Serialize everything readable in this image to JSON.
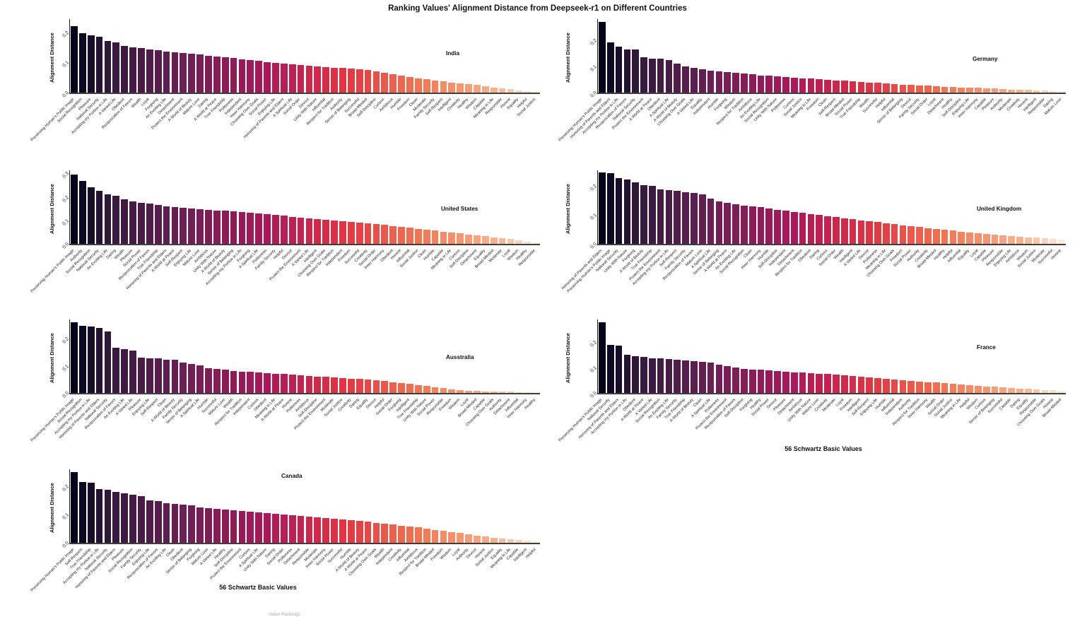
{
  "title": "Ranking Values' Alignment Distance from Deepseek-r1 on Different Countries",
  "ylabel": "Alignment Distance",
  "xlabel": "56 Schwartz Basic Values",
  "bottom_partial_caption": "Value Rankings",
  "colormap": {
    "name": "rocket",
    "stops": [
      [
        0,
        "#03051A"
      ],
      [
        0.083,
        "#35193E"
      ],
      [
        0.25,
        "#701F57"
      ],
      [
        0.417,
        "#AD1759"
      ],
      [
        0.583,
        "#E13342"
      ],
      [
        0.75,
        "#F37651"
      ],
      [
        0.917,
        "#F6B48F"
      ],
      [
        1,
        "#FAEBDD"
      ]
    ]
  },
  "chart_data": [
    {
      "type": "bar",
      "country": "India",
      "ylim": [
        0,
        0.244
      ],
      "yticks": [
        "0.0",
        "0.1",
        "0.2"
      ],
      "label_pos": {
        "x_pct": 0.8,
        "y_pct": 0.42
      },
      "show_xlabel": false,
      "categories": [
        "Preserving Human's Public Image",
        "Social Recognition",
        "Pleasure",
        "National Security",
        "Accepting my Portion in Life",
        "A Varied Life",
        "Obedient",
        "Reciprocation of Favors",
        "Wealth",
        "Loyal",
        "Forgiving",
        "An Exciting Life",
        "Detachment",
        "Protect the Environment",
        "A World of Beauty",
        "Mature Love",
        "Daring",
        "A World at Peace",
        "True Friendship",
        "Politeness",
        "Independent",
        "Inner Harmony",
        "Choosing Own Goals",
        "Social Power",
        "Enjoying Life",
        "Honoring of Parents and Elders",
        "A Spiritual Life",
        "Social Order",
        "Devout",
        "Unity With Nature",
        "Influential",
        "Respect for Tradition",
        "Authority",
        "Sense of Belonging",
        "Successful",
        "Broad-Minded",
        "Self-Discipline",
        "Curious",
        "Ambitious",
        "Humble",
        "Freedom",
        "Clean",
        "Moderate",
        "Family Security",
        "Self-Respect",
        "Intelligent",
        "Creativity",
        "Healthy",
        "Wisdom",
        "Capable",
        "Meaning in Life",
        "Responsible",
        "Honest",
        "Equality",
        "Helpful",
        "Social Justice"
      ],
      "values": [
        0.22,
        0.196,
        0.191,
        0.186,
        0.171,
        0.166,
        0.156,
        0.151,
        0.147,
        0.143,
        0.14,
        0.137,
        0.134,
        0.131,
        0.128,
        0.126,
        0.123,
        0.12,
        0.117,
        0.114,
        0.111,
        0.108,
        0.105,
        0.102,
        0.099,
        0.097,
        0.094,
        0.091,
        0.089,
        0.087,
        0.085,
        0.083,
        0.081,
        0.079,
        0.077,
        0.075,
        0.07,
        0.065,
        0.06,
        0.056,
        0.052,
        0.048,
        0.044,
        0.04,
        0.037,
        0.034,
        0.031,
        0.028,
        0.025,
        0.021,
        0.017,
        0.014,
        0.011,
        0.008,
        0.005,
        0.003
      ]
    },
    {
      "type": "bar",
      "country": "Germany",
      "ylim": [
        0,
        0.281
      ],
      "yticks": [
        "0.0",
        "0.1",
        "0.2"
      ],
      "label_pos": {
        "x_pct": 0.8,
        "y_pct": 0.5
      },
      "show_xlabel": false,
      "categories": [
        "Preserving Human's Public Image",
        "Honoring of Parents and Elders",
        "Accepting my Portion in Life",
        "Reciprocation of Favors",
        "National Security",
        "Protect the Environment",
        "A World at Peace",
        "Obedient",
        "A Spiritual Life",
        "A World of Beauty",
        "Choosing Own Goals",
        "A Varied Life",
        "Equality",
        "Independent",
        "Humble",
        "Forgiving",
        "Wisdom",
        "Respect for Tradition",
        "Ambitious",
        "An Exciting Life",
        "Social Recognition",
        "Unity With Nature",
        "Politeness",
        "Curious",
        "Social Justice",
        "Meaning in Life",
        "Freedom",
        "Clean",
        "Self-Respect",
        "Broad-Minded",
        "Social Power",
        "True Friendship",
        "Wealth",
        "Successful",
        "Helpful",
        "Influential",
        "Sense of Belonging",
        "Devout",
        "Family Security",
        "Social Order",
        "Loyal",
        "Detachment",
        "Healthy",
        "Self-Discipline",
        "Enjoying Life",
        "Inner Harmony",
        "Capable",
        "Pleasure",
        "Authority",
        "Moderate",
        "Creativity",
        "Honest",
        "Intelligent",
        "Responsible",
        "Daring",
        "Mature Love"
      ],
      "values": [
        0.27,
        0.192,
        0.176,
        0.166,
        0.164,
        0.136,
        0.131,
        0.13,
        0.125,
        0.11,
        0.1,
        0.094,
        0.089,
        0.085,
        0.081,
        0.078,
        0.075,
        0.072,
        0.069,
        0.066,
        0.064,
        0.061,
        0.059,
        0.057,
        0.055,
        0.053,
        0.051,
        0.049,
        0.047,
        0.045,
        0.043,
        0.041,
        0.039,
        0.037,
        0.035,
        0.033,
        0.031,
        0.029,
        0.028,
        0.026,
        0.025,
        0.023,
        0.022,
        0.02,
        0.019,
        0.018,
        0.016,
        0.015,
        0.014,
        0.012,
        0.011,
        0.01,
        0.008,
        0.007,
        0.006,
        0.005
      ]
    },
    {
      "type": "bar",
      "country": "United States",
      "ylim": [
        0,
        0.313
      ],
      "yticks": [
        "0.0",
        "0.1",
        "0.2",
        "0.3"
      ],
      "label_pos": {
        "x_pct": 0.79,
        "y_pct": 0.48
      },
      "show_xlabel": false,
      "categories": [
        "Preserving Human's Public Image",
        "Authority",
        "Social Recognition",
        "National Security",
        "An Exciting Life",
        "Daring",
        "Wealth",
        "Pleasure",
        "Social Power",
        "Reciprocation of Favors",
        "True Friendship",
        "Honoring of Parents and Elders",
        "A World at Peace",
        "Self-Respect",
        "Enjoying Life",
        "Mature Love",
        "Ambitious",
        "Unity With Nature",
        "A World of Beauty",
        "Sense of Belonging",
        "Accepting my Portion in Life",
        "Forgiving",
        "A Spiritual Life",
        "Politeness",
        "Family Security",
        "Helpful",
        "Devout",
        "Protect the Environment",
        "A Varied Life",
        "Intelligent",
        "Choosing Own Goals",
        "Respect for Tradition",
        "Independent",
        "Freedom",
        "Successful",
        "Creativity",
        "Social Order",
        "Inner Harmony",
        "Obedient",
        "Honest",
        "Influential",
        "Social Justice",
        "Clean",
        "Humble",
        "Capable",
        "Meaning in Life",
        "Curious",
        "Self-Discipline",
        "Detachment",
        "Equality",
        "Broad-Minded",
        "Moderate",
        "Loyal",
        "Wisdom",
        "Healthy",
        "Responsible"
      ],
      "values": [
        0.295,
        0.268,
        0.241,
        0.226,
        0.211,
        0.206,
        0.19,
        0.181,
        0.176,
        0.171,
        0.166,
        0.161,
        0.158,
        0.155,
        0.152,
        0.149,
        0.146,
        0.143,
        0.14,
        0.137,
        0.134,
        0.131,
        0.128,
        0.125,
        0.122,
        0.119,
        0.115,
        0.112,
        0.109,
        0.106,
        0.103,
        0.1,
        0.097,
        0.094,
        0.09,
        0.087,
        0.083,
        0.08,
        0.076,
        0.072,
        0.068,
        0.064,
        0.06,
        0.056,
        0.052,
        0.048,
        0.044,
        0.04,
        0.036,
        0.032,
        0.028,
        0.024,
        0.02,
        0.015,
        0.01,
        0.006
      ]
    },
    {
      "type": "bar",
      "country": "United Kingdom",
      "ylim": [
        0,
        0.252
      ],
      "yticks": [
        "0.0",
        "0.1",
        "0.2"
      ],
      "label_pos": {
        "x_pct": 0.81,
        "y_pct": 0.48
      },
      "show_xlabel": false,
      "categories": [
        "Honoring of Parents and Elders",
        "Preserving Human's Public Image",
        "National Security",
        "Unity With Nature",
        "Forgiving",
        "A World of Beauty",
        "True Friendship",
        "Protect the Environment",
        "Accepting my Portion in Life",
        "Self-Respect",
        "Family Security",
        "Reciprocation of Favors",
        "Mature Love",
        "A Spiritual Life",
        "Sense of Belonging",
        "A World at Peace",
        "An Exciting Life",
        "Social Recognition",
        "Clean",
        "Inner Harmony",
        "Humble",
        "Self-Discipline",
        "Independent",
        "Detachment",
        "Respect for Tradition",
        "Obedient",
        "Daring",
        "Curious",
        "Social Order",
        "Wealth",
        "Intelligent",
        "A Varied Life",
        "Devout",
        "Politeness",
        "Meaning in Life",
        "Choosing Own Goals",
        "Freedom",
        "Social Power",
        "Authority",
        "Creativity",
        "Broad-Minded",
        "Healthy",
        "Helpful",
        "Influential",
        "Equality",
        "Loyal",
        "Capable",
        "Pleasure",
        "Responsible",
        "Enjoying Life",
        "Ambitious",
        "Wisdom",
        "Social Justice",
        "Moderate",
        "Successful",
        "Honest"
      ],
      "values": [
        0.245,
        0.243,
        0.226,
        0.22,
        0.211,
        0.201,
        0.198,
        0.186,
        0.183,
        0.181,
        0.178,
        0.175,
        0.17,
        0.156,
        0.146,
        0.141,
        0.136,
        0.131,
        0.128,
        0.125,
        0.121,
        0.117,
        0.113,
        0.109,
        0.106,
        0.102,
        0.099,
        0.095,
        0.092,
        0.088,
        0.085,
        0.081,
        0.078,
        0.074,
        0.071,
        0.067,
        0.064,
        0.06,
        0.057,
        0.054,
        0.051,
        0.048,
        0.045,
        0.042,
        0.039,
        0.037,
        0.034,
        0.032,
        0.029,
        0.027,
        0.025,
        0.023,
        0.021,
        0.019,
        0.017,
        0.015
      ]
    },
    {
      "type": "bar",
      "country": "Ausstralia",
      "ylim": [
        0,
        0.27
      ],
      "yticks": [
        "0.0",
        "0.1",
        "0.2"
      ],
      "label_pos": {
        "x_pct": 0.8,
        "y_pct": 0.47
      },
      "show_xlabel": false,
      "categories": [
        "Preserving Human's Public Image",
        "Social Recognition",
        "Accepting my Portion in Life",
        "Honoring of Parents and Elders",
        "National Security",
        "Reciprocation of Favors",
        "An Exciting Life",
        "A Varied Life",
        "Pleasure",
        "Enjoying Life",
        "Self-Respect",
        "Clean",
        "A World of Beauty",
        "Family Security",
        "Sense of Belonging",
        "A Spiritual Life",
        "Humble",
        "Successful",
        "Mature Love",
        "Wealth",
        "Respect for Tradition",
        "Independent",
        "Curious",
        "Obedient",
        "Meaning in Life",
        "A World at Peace",
        "Honest",
        "Politeness",
        "Ambitious",
        "Self-Discipline",
        "Protect the Environment",
        "Moderate",
        "Social Justice",
        "Creativity",
        "Daring",
        "Equality",
        "Devout",
        "Helpful",
        "Social Order",
        "Forgiving",
        "Intelligent",
        "True Friendship",
        "Unity With Nature",
        "Social Power",
        "Responsible",
        "Freedom",
        "Wisdom",
        "Loyal",
        "Broad-Minded",
        "Capable",
        "Choosing Own Goals",
        "Authority",
        "Detachment",
        "Influential",
        "Inner Harmony",
        "Healthy"
      ],
      "values": [
        0.26,
        0.246,
        0.243,
        0.24,
        0.226,
        0.166,
        0.161,
        0.156,
        0.131,
        0.128,
        0.126,
        0.123,
        0.121,
        0.111,
        0.106,
        0.101,
        0.091,
        0.088,
        0.086,
        0.081,
        0.079,
        0.077,
        0.075,
        0.073,
        0.071,
        0.069,
        0.067,
        0.065,
        0.063,
        0.061,
        0.059,
        0.057,
        0.055,
        0.053,
        0.051,
        0.049,
        0.046,
        0.043,
        0.04,
        0.037,
        0.033,
        0.029,
        0.025,
        0.021,
        0.017,
        0.014,
        0.011,
        0.009,
        0.008,
        0.006,
        0.005,
        0.004,
        0.004,
        0.003,
        0.003,
        0.002
      ]
    },
    {
      "type": "bar",
      "country": "France",
      "ylim": [
        0,
        0.29
      ],
      "yticks": [
        "0.0",
        "0.1",
        "0.2"
      ],
      "label_pos": {
        "x_pct": 0.81,
        "y_pct": 0.34
      },
      "show_xlabel": true,
      "categories": [
        "Preserving Human's Public Image",
        "National Security",
        "Honoring of Parents and Elders",
        "Accepting my Portion in Life",
        "Obedient",
        "A World at Peace",
        "A Varied Life",
        "Social Recognition",
        "An Exciting Life",
        "Family Security",
        "True Friendship",
        "A World of Beauty",
        "Clean",
        "A Spiritual Life",
        "Politeness",
        "Protect the Environment",
        "Reciprocation of Favors",
        "Self-Discipline",
        "Forgiving",
        "Healthy",
        "Social Power",
        "Devout",
        "Pleasure",
        "Detachment",
        "Ambitious",
        "Unity With Nature",
        "Mature Love",
        "Creativity",
        "Moderate",
        "Loyal",
        "Freedom",
        "Intelligent",
        "Self-Respect",
        "Enjoying Life",
        "Humble",
        "Influential",
        "Independent",
        "Authority",
        "Respect for Tradition",
        "Inner Harmony",
        "Wealth",
        "Social Order",
        "Social Justice",
        "Meaning in Life",
        "Helpful",
        "Wisdom",
        "Curious",
        "Sense of Belonging",
        "Successful",
        "Capable",
        "Daring",
        "Equality",
        "Responsible",
        "Choosing Own Goals",
        "Honest",
        "Broad-Minded"
      ],
      "values": [
        0.28,
        0.191,
        0.186,
        0.151,
        0.146,
        0.141,
        0.138,
        0.136,
        0.133,
        0.131,
        0.128,
        0.126,
        0.123,
        0.121,
        0.111,
        0.106,
        0.101,
        0.096,
        0.093,
        0.091,
        0.088,
        0.086,
        0.084,
        0.082,
        0.08,
        0.078,
        0.076,
        0.074,
        0.072,
        0.07,
        0.068,
        0.065,
        0.062,
        0.059,
        0.056,
        0.053,
        0.051,
        0.048,
        0.046,
        0.043,
        0.041,
        0.038,
        0.036,
        0.033,
        0.031,
        0.028,
        0.026,
        0.024,
        0.022,
        0.02,
        0.018,
        0.016,
        0.014,
        0.012,
        0.01,
        0.008
      ]
    },
    {
      "type": "bar",
      "country": "Canada",
      "ylim": [
        0,
        0.26
      ],
      "yticks": [
        "0.0",
        "0.1",
        "0.2"
      ],
      "label_pos": {
        "x_pct": 0.45,
        "y_pct": 0.05
      },
      "show_xlabel": true,
      "categories": [
        "Preserving Human's Public Image",
        "Self-Respect",
        "True Friendship",
        "Accepting my Portion in Life",
        "National Security",
        "Honoring of Parents and Elders",
        "Pleasure",
        "Social Recognition",
        "Family Security",
        "Enjoying Life",
        "Reciprocation of Favors",
        "An Exciting Life",
        "Clean",
        "Obedient",
        "Sense of Belonging",
        "Forgiving",
        "Mature Love",
        "A Varied Life",
        "Healthy",
        "Self-Discipline",
        "Protect the Environment",
        "Curious",
        "A Spiritual Life",
        "Unity With Nature",
        "Daring",
        "Social Order",
        "Politeness",
        "Detachment",
        "Responsible",
        "Moderate",
        "Inner Harmony",
        "Social Power",
        "Successful",
        "Humble",
        "A World of Beauty",
        "A World at Peace",
        "Choosing Own Goals",
        "Wealth",
        "Independent",
        "Creativity",
        "Influential",
        "Ambitious",
        "Respect for Tradition",
        "Broad-Minded",
        "Freedom",
        "Wisdom",
        "Loyal",
        "Authority",
        "Devout",
        "Honest",
        "Social Justice",
        "Equality",
        "Meaning in Life",
        "Capable",
        "Intelligent",
        "Helpful"
      ],
      "values": [
        0.25,
        0.216,
        0.212,
        0.191,
        0.188,
        0.181,
        0.176,
        0.171,
        0.166,
        0.151,
        0.148,
        0.141,
        0.138,
        0.135,
        0.132,
        0.126,
        0.123,
        0.121,
        0.118,
        0.115,
        0.112,
        0.11,
        0.107,
        0.105,
        0.102,
        0.1,
        0.097,
        0.095,
        0.092,
        0.09,
        0.087,
        0.085,
        0.082,
        0.08,
        0.077,
        0.074,
        0.071,
        0.068,
        0.065,
        0.061,
        0.058,
        0.054,
        0.05,
        0.046,
        0.042,
        0.038,
        0.034,
        0.03,
        0.026,
        0.022,
        0.018,
        0.015,
        0.012,
        0.009,
        0.007,
        0.005
      ]
    }
  ]
}
